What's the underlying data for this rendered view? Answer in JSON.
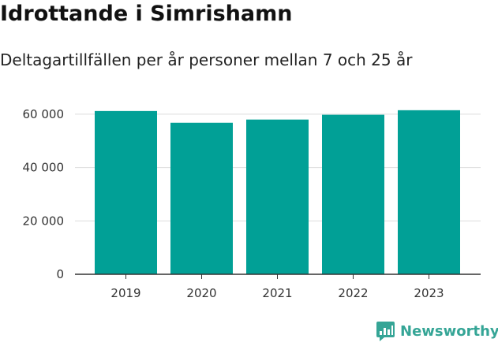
{
  "chart_data": {
    "type": "bar",
    "title": "Idrottande i Simrishamn",
    "subtitle": "Deltagartillfällen per år personer mellan 7 och 25 år",
    "categories": [
      "2019",
      "2020",
      "2021",
      "2022",
      "2023"
    ],
    "values": [
      61200,
      56800,
      58000,
      59800,
      61500
    ],
    "ylim": [
      0,
      65000
    ],
    "yticks": [
      0,
      20000,
      40000,
      60000
    ],
    "ytick_labels": [
      "0",
      "20 000",
      "40 000",
      "60 000"
    ],
    "xlabel": "",
    "ylabel": "",
    "grid": true,
    "bar_color": "#01a096",
    "grid_color": "#dddddd",
    "axis_color": "#333333"
  },
  "brand": {
    "name": "Newsworthy",
    "icon": "newsworthy-logo-icon",
    "color": "#35a596"
  }
}
